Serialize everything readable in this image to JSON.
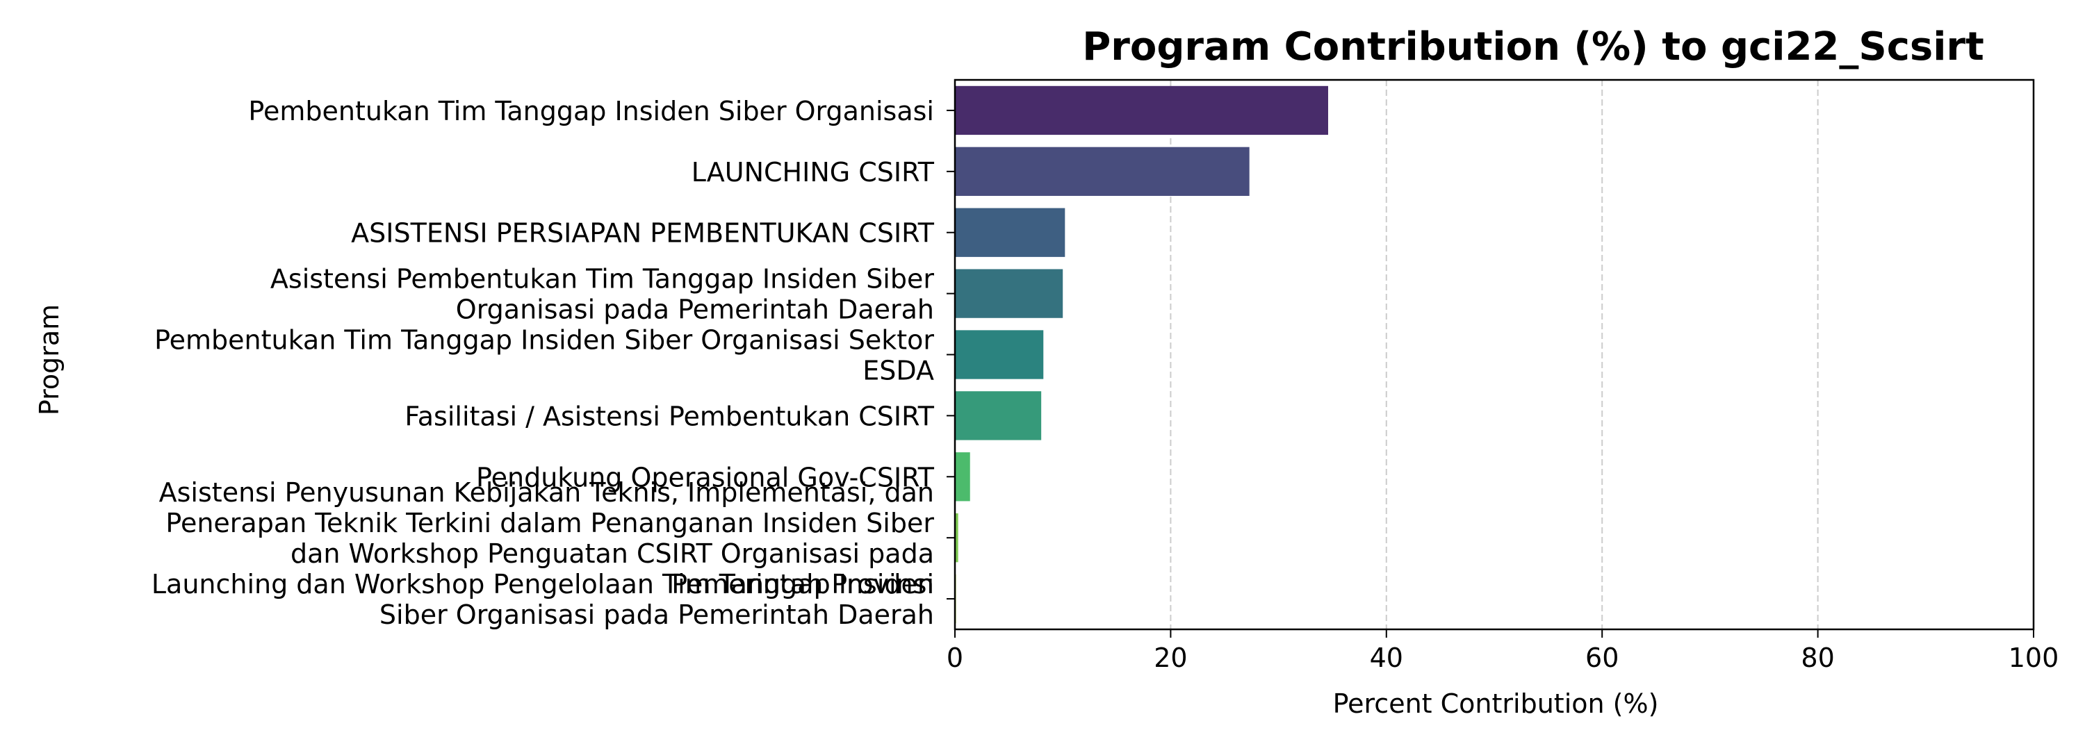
{
  "chart_data": {
    "type": "bar",
    "orientation": "horizontal",
    "title": "Program Contribution (%) to gci22_Scsirt",
    "xlabel": "Percent Contribution (%)",
    "ylabel": "Program",
    "xlim": [
      0,
      100
    ],
    "xticks": [
      "0",
      "20",
      "40",
      "60",
      "80",
      "100"
    ],
    "grid": "vertical dashed",
    "categories": [
      "Pembentukan Tim Tanggap Insiden Siber Organisasi",
      "LAUNCHING CSIRT",
      "ASISTENSI PERSIAPAN PEMBENTUKAN CSIRT",
      "Asistensi Pembentukan Tim Tanggap Insiden Siber\nOrganisasi pada Pemerintah Daerah",
      "Pembentukan Tim Tanggap Insiden Siber Organisasi Sektor\nESDA",
      "Fasilitasi / Asistensi Pembentukan CSIRT",
      "Pendukung Operasional Gov-CSIRT",
      "Asistensi Penyusunan Kebijakan Teknis, Implementasi, dan\nPenerapan Teknik Terkini dalam Penanganan Insiden Siber\ndan Workshop Penguatan CSIRT Organisasi pada\nPemerintah Provinsi",
      "Launching dan Workshop Pengelolaan Tim Tanggap Insiden\nSiber Organisasi pada Pemerintah Daerah"
    ],
    "values": [
      34.6,
      27.3,
      10.2,
      10.0,
      8.2,
      8.0,
      1.4,
      0.3,
      0.1
    ],
    "colors": [
      "#482c6a",
      "#484d7d",
      "#3e5f82",
      "#35727f",
      "#2b837f",
      "#369a7a",
      "#4cbb6c",
      "#7fca52",
      "#b4d93f"
    ]
  }
}
